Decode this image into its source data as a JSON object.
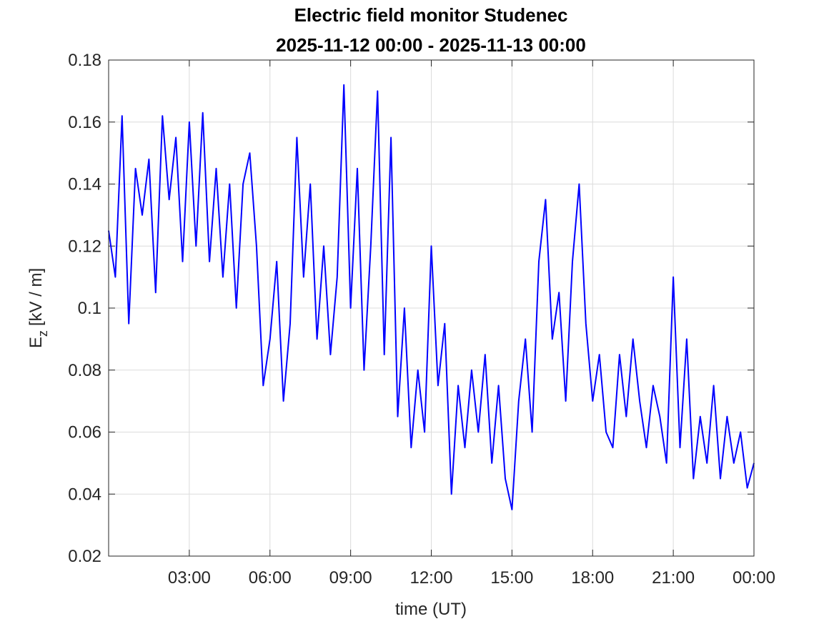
{
  "chart_data": {
    "type": "line",
    "title": "Electric field monitor Studenec",
    "subtitle": "2025-11-12 00:00 - 2025-11-13 00:00",
    "xlabel": "time (UT)",
    "ylabel": "E",
    "ylabel_subscript": "z",
    "ylabel_unit": "[kV / m]",
    "xlim": [
      0,
      24
    ],
    "ylim": [
      0.02,
      0.18
    ],
    "xticks": [
      {
        "value": 3,
        "label": "03:00"
      },
      {
        "value": 6,
        "label": "06:00"
      },
      {
        "value": 9,
        "label": "09:00"
      },
      {
        "value": 12,
        "label": "12:00"
      },
      {
        "value": 15,
        "label": "15:00"
      },
      {
        "value": 18,
        "label": "18:00"
      },
      {
        "value": 21,
        "label": "21:00"
      },
      {
        "value": 24,
        "label": "00:00"
      }
    ],
    "yticks": [
      0.02,
      0.04,
      0.06,
      0.08,
      0.1,
      0.12,
      0.14,
      0.16,
      0.18
    ],
    "grid": true,
    "x": [
      0,
      0.25,
      0.5,
      0.75,
      1,
      1.25,
      1.5,
      1.75,
      2,
      2.25,
      2.5,
      2.75,
      3,
      3.25,
      3.5,
      3.75,
      4,
      4.25,
      4.5,
      4.75,
      5,
      5.25,
      5.5,
      5.75,
      6,
      6.25,
      6.5,
      6.75,
      7,
      7.25,
      7.5,
      7.75,
      8,
      8.25,
      8.5,
      8.75,
      9,
      9.25,
      9.5,
      9.75,
      10,
      10.25,
      10.5,
      10.75,
      11,
      11.25,
      11.5,
      11.75,
      12,
      12.25,
      12.5,
      12.75,
      13,
      13.25,
      13.5,
      13.75,
      14,
      14.25,
      14.5,
      14.75,
      15,
      15.25,
      15.5,
      15.75,
      16,
      16.25,
      16.5,
      16.75,
      17,
      17.25,
      17.5,
      17.75,
      18,
      18.25,
      18.5,
      18.75,
      19,
      19.25,
      19.5,
      19.75,
      20,
      20.25,
      20.5,
      20.75,
      21,
      21.25,
      21.5,
      21.75,
      22,
      22.25,
      22.5,
      22.75,
      23,
      23.25,
      23.5,
      23.75,
      24
    ],
    "series": [
      {
        "color": "#0000ff",
        "values": [
          0.125,
          0.11,
          0.162,
          0.095,
          0.145,
          0.13,
          0.148,
          0.105,
          0.162,
          0.135,
          0.155,
          0.115,
          0.16,
          0.12,
          0.163,
          0.115,
          0.145,
          0.11,
          0.14,
          0.1,
          0.14,
          0.15,
          0.12,
          0.075,
          0.09,
          0.115,
          0.07,
          0.095,
          0.155,
          0.11,
          0.14,
          0.09,
          0.12,
          0.085,
          0.11,
          0.172,
          0.1,
          0.145,
          0.08,
          0.12,
          0.17,
          0.085,
          0.155,
          0.065,
          0.1,
          0.055,
          0.08,
          0.06,
          0.12,
          0.075,
          0.095,
          0.04,
          0.075,
          0.055,
          0.08,
          0.06,
          0.085,
          0.05,
          0.075,
          0.045,
          0.035,
          0.07,
          0.09,
          0.06,
          0.115,
          0.135,
          0.09,
          0.105,
          0.07,
          0.115,
          0.14,
          0.095,
          0.07,
          0.085,
          0.06,
          0.055,
          0.085,
          0.065,
          0.09,
          0.07,
          0.055,
          0.075,
          0.065,
          0.05,
          0.11,
          0.055,
          0.09,
          0.045,
          0.065,
          0.05,
          0.075,
          0.045,
          0.065,
          0.05,
          0.06,
          0.042,
          0.05
        ]
      }
    ]
  }
}
